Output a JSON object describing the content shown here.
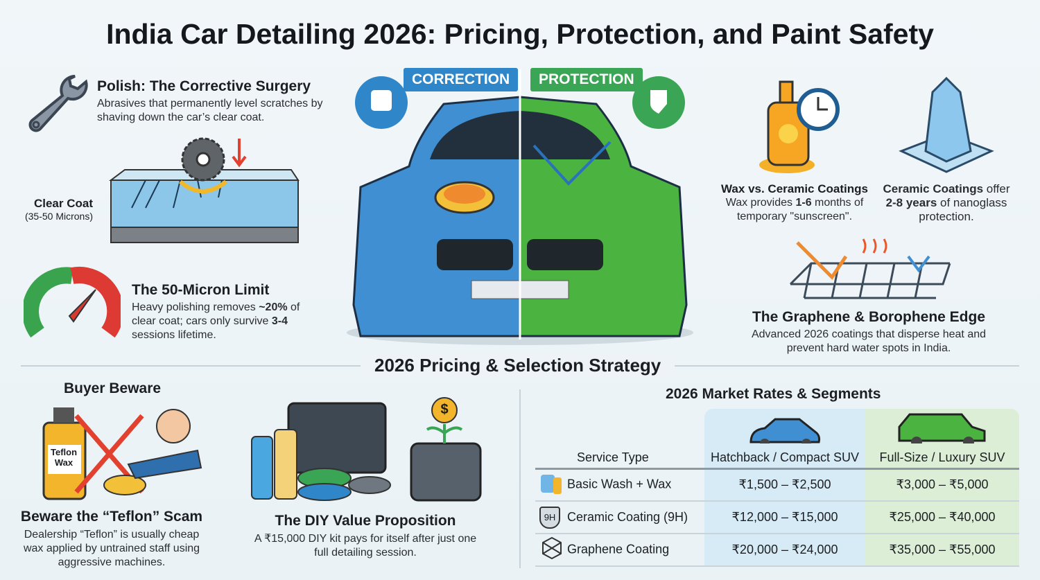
{
  "title": "India Car Detailing 2026: Pricing, Protection, and Paint Safety",
  "polish": {
    "title": "Polish: The Corrective Surgery",
    "text": "Abrasives that permanently level scratches by shaving down the car’s clear coat.",
    "clear_coat_label": "Clear Coat",
    "clear_coat_microns": "(35-50 Microns)"
  },
  "limit": {
    "title": "The 50-Micron Limit",
    "text_1": "Heavy polishing removes ",
    "bold_1": "~20%",
    "text_2": " of clear coat; cars only survive ",
    "bold_2": "3-4",
    "text_3": " sessions lifetime."
  },
  "car": {
    "correction_label": "CORRECTION",
    "protection_label": "PROTECTION",
    "correction_color": "#2f86c8",
    "protection_color": "#3aa655"
  },
  "wax": {
    "title": "Wax vs. Ceramic Coatings",
    "text_1": "Wax provides ",
    "bold": "1-6",
    "text_2": " months of temporary \"sunscreen\"."
  },
  "ceramic": {
    "bold_1": "Ceramic Coatings",
    "text_1": " offer ",
    "bold_2": "2-8 years",
    "text_2": " of nanoglass protection."
  },
  "graphene": {
    "title": "The Graphene & Borophene Edge",
    "text": "Advanced 2026 coatings that disperse heat and prevent hard water spots in India."
  },
  "section_title": "2026 Pricing & Selection Strategy",
  "beware": {
    "heading": "Buyer Beware",
    "bottle_label": "Teflon Wax",
    "title": "Beware the “Teflon” Scam",
    "text": "Dealership “Teflon” is usually cheap wax applied by untrained staff using aggressive machines."
  },
  "diy": {
    "coin_symbol": "$",
    "title": "The DIY Value Proposition",
    "text": "A ₹15,000 DIY kit pays for itself after just one full detailing session."
  },
  "rates": {
    "title": "2026 Market Rates & Segments",
    "headers": [
      "Service Type",
      "Hatchback / Compact SUV",
      "Full-Size / Luxury SUV"
    ],
    "rows": [
      {
        "icon": "wash-wax-icon",
        "service": "Basic Wash + Wax",
        "hatch": "₹1,500 – ₹2,500",
        "suv": "₹3,000 – ₹5,000"
      },
      {
        "icon": "shield-9h-icon",
        "icon_text": "9H",
        "service": "Ceramic Coating (9H)",
        "hatch": "₹12,000 – ₹15,000",
        "suv": "₹25,000 – ₹40,000"
      },
      {
        "icon": "graphene-icon",
        "service": "Graphene Coating",
        "hatch": "₹20,000 – ₹24,000",
        "suv": "₹35,000 – ₹55,000"
      }
    ]
  }
}
